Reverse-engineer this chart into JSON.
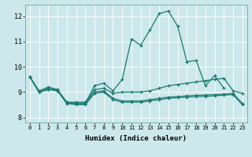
{
  "xlabel": "Humidex (Indice chaleur)",
  "background_color": "#cce8ec",
  "grid_color": "#ffffff",
  "line_color": "#1a7a6e",
  "xlim": [
    -0.5,
    23.5
  ],
  "ylim": [
    7.8,
    12.45
  ],
  "xtick_labels": [
    "0",
    "1",
    "2",
    "3",
    "4",
    "5",
    "6",
    "7",
    "8",
    "9",
    "10",
    "11",
    "12",
    "13",
    "14",
    "15",
    "16",
    "17",
    "18",
    "19",
    "20",
    "21",
    "22",
    "23"
  ],
  "ytick_vals": [
    8,
    9,
    10,
    11,
    12
  ],
  "series": [
    {
      "x": [
        0,
        1,
        2,
        3,
        4,
        5,
        6,
        7,
        8,
        9,
        10,
        11,
        12,
        13,
        14,
        15,
        16,
        17,
        18,
        19,
        20,
        21
      ],
      "y": [
        9.6,
        9.0,
        9.1,
        9.1,
        8.55,
        8.55,
        8.55,
        9.25,
        9.35,
        9.05,
        9.5,
        11.1,
        10.85,
        11.45,
        12.1,
        12.2,
        11.6,
        10.2,
        10.25,
        9.25,
        9.65,
        9.15
      ]
    },
    {
      "x": [
        0,
        1,
        2,
        3,
        4,
        5,
        6,
        7,
        8,
        9,
        10,
        11,
        12,
        13,
        14,
        15,
        16,
        17,
        18,
        19,
        20,
        21,
        22,
        23
      ],
      "y": [
        9.6,
        9.0,
        9.15,
        9.05,
        8.6,
        8.55,
        8.55,
        9.0,
        9.05,
        8.75,
        8.65,
        8.65,
        8.65,
        8.7,
        8.75,
        8.8,
        8.82,
        8.85,
        8.87,
        8.88,
        8.9,
        8.92,
        8.95,
        8.55
      ]
    },
    {
      "x": [
        0,
        1,
        2,
        3,
        4,
        5,
        6,
        7,
        8,
        9,
        10,
        11,
        12,
        13,
        14,
        15,
        16,
        17,
        18,
        19,
        20,
        21,
        22,
        23
      ],
      "y": [
        9.6,
        9.05,
        9.2,
        9.1,
        8.6,
        8.6,
        8.6,
        9.1,
        9.15,
        8.95,
        9.0,
        9.0,
        9.0,
        9.05,
        9.15,
        9.25,
        9.3,
        9.35,
        9.4,
        9.45,
        9.5,
        9.55,
        9.05,
        8.95
      ]
    },
    {
      "x": [
        0,
        1,
        2,
        3,
        4,
        5,
        6,
        7,
        8,
        9,
        10,
        11,
        12,
        13,
        14,
        15,
        16,
        17,
        18,
        19,
        20,
        21,
        22,
        23
      ],
      "y": [
        9.6,
        9.0,
        9.1,
        9.05,
        8.55,
        8.5,
        8.5,
        8.95,
        9.0,
        8.7,
        8.6,
        8.6,
        8.6,
        8.65,
        8.7,
        8.75,
        8.78,
        8.8,
        8.82,
        8.83,
        8.85,
        8.88,
        8.9,
        8.5
      ]
    }
  ]
}
